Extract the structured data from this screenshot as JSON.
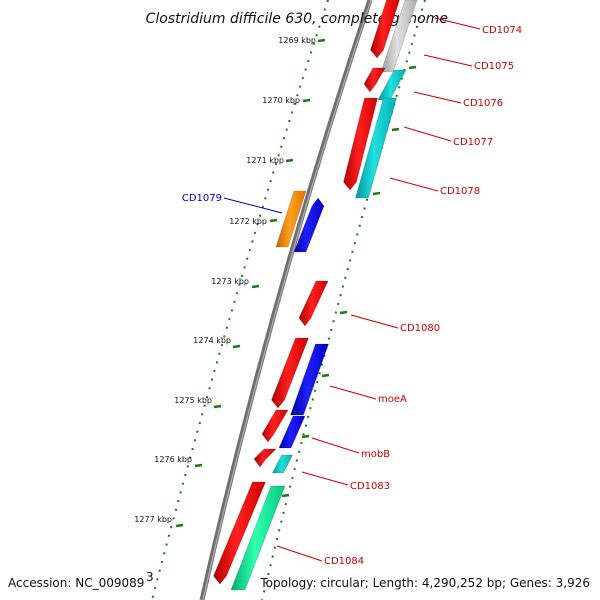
{
  "title": "Clostridium difficile 630, complete genome",
  "footer": {
    "accession": "Accession: NC_009089",
    "topology": "Topology: circular; Length: 4,290,252 bp; Genes: 3,926"
  },
  "colors": {
    "red": "#ff0000",
    "blue": "#0000ff",
    "orange": "#ff8c00",
    "cyan": "#00c8c8",
    "green": "#00e690",
    "gray": "#c8c8c8",
    "tick_green": "#1a7a1a",
    "label_red": "#cc0000",
    "label_blue": "#0000cc"
  },
  "kbp_ticks": [
    "1269 kbp",
    "1270 kbp",
    "1271 kbp",
    "1272 kbp",
    "1273 kbp",
    "1274 kbp",
    "1275 kbp",
    "1276 kbp",
    "1277 kbp"
  ],
  "gene_labels": [
    {
      "text": "CD1074",
      "color": "label_red"
    },
    {
      "text": "CD1075",
      "color": "label_red"
    },
    {
      "text": "CD1076",
      "color": "label_red"
    },
    {
      "text": "CD1077",
      "color": "label_red"
    },
    {
      "text": "CD1078",
      "color": "label_red"
    },
    {
      "text": "CD1079",
      "color": "label_blue"
    },
    {
      "text": "CD1080",
      "color": "label_red"
    },
    {
      "text": "moeA",
      "color": "label_red"
    },
    {
      "text": "mobB",
      "color": "label_red"
    },
    {
      "text": "CD1083",
      "color": "label_red"
    },
    {
      "text": "CD1084",
      "color": "label_red"
    }
  ]
}
